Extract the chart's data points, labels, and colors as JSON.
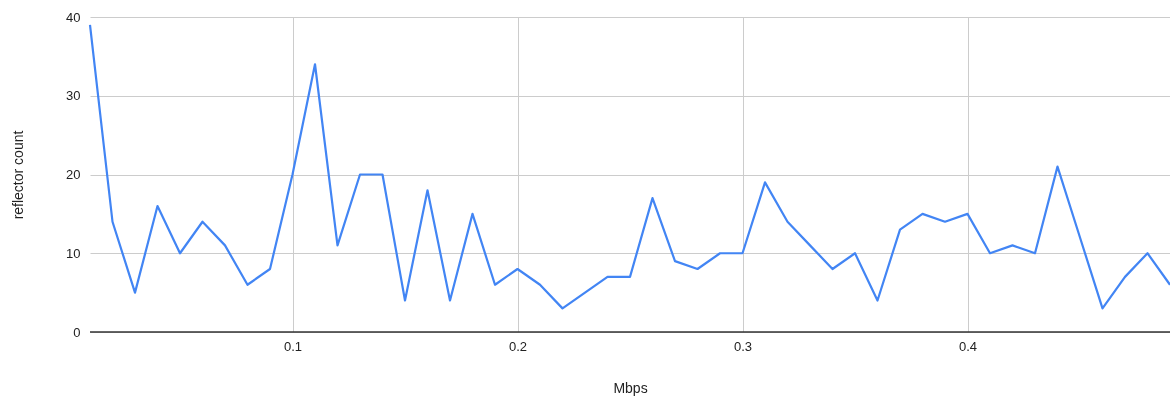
{
  "chart_data": {
    "type": "line",
    "xlabel": "Mbps",
    "ylabel": "reflector count",
    "x": [
      0.01,
      0.02,
      0.03,
      0.04,
      0.05,
      0.06,
      0.07,
      0.08,
      0.09,
      0.1,
      0.11,
      0.12,
      0.13,
      0.14,
      0.15,
      0.16,
      0.17,
      0.18,
      0.19,
      0.2,
      0.21,
      0.22,
      0.23,
      0.24,
      0.25,
      0.26,
      0.27,
      0.28,
      0.29,
      0.3,
      0.31,
      0.32,
      0.33,
      0.34,
      0.35,
      0.36,
      0.37,
      0.38,
      0.39,
      0.4,
      0.41,
      0.42,
      0.43,
      0.44,
      0.45,
      0.46,
      0.47,
      0.48,
      0.49
    ],
    "series": [
      {
        "color": "#4285f4",
        "values": [
          39,
          14,
          5,
          16,
          10,
          14,
          11,
          6,
          8,
          20,
          34,
          11,
          20,
          20,
          4,
          18,
          4,
          15,
          6,
          8,
          6,
          3,
          5,
          7,
          7,
          17,
          9,
          8,
          10,
          10,
          19,
          14,
          11,
          8,
          10,
          4,
          13,
          15,
          14,
          15,
          10,
          11,
          10,
          21,
          12,
          3,
          7,
          10,
          6
        ]
      }
    ],
    "xlim": [
      0.01,
      0.49
    ],
    "xticks": [
      0.1,
      0.2,
      0.3,
      0.4
    ],
    "ylim": [
      0,
      40
    ],
    "yticks": [
      0,
      10,
      20,
      30,
      40
    ],
    "grid": true,
    "marker": "none",
    "line_style": "solid"
  }
}
